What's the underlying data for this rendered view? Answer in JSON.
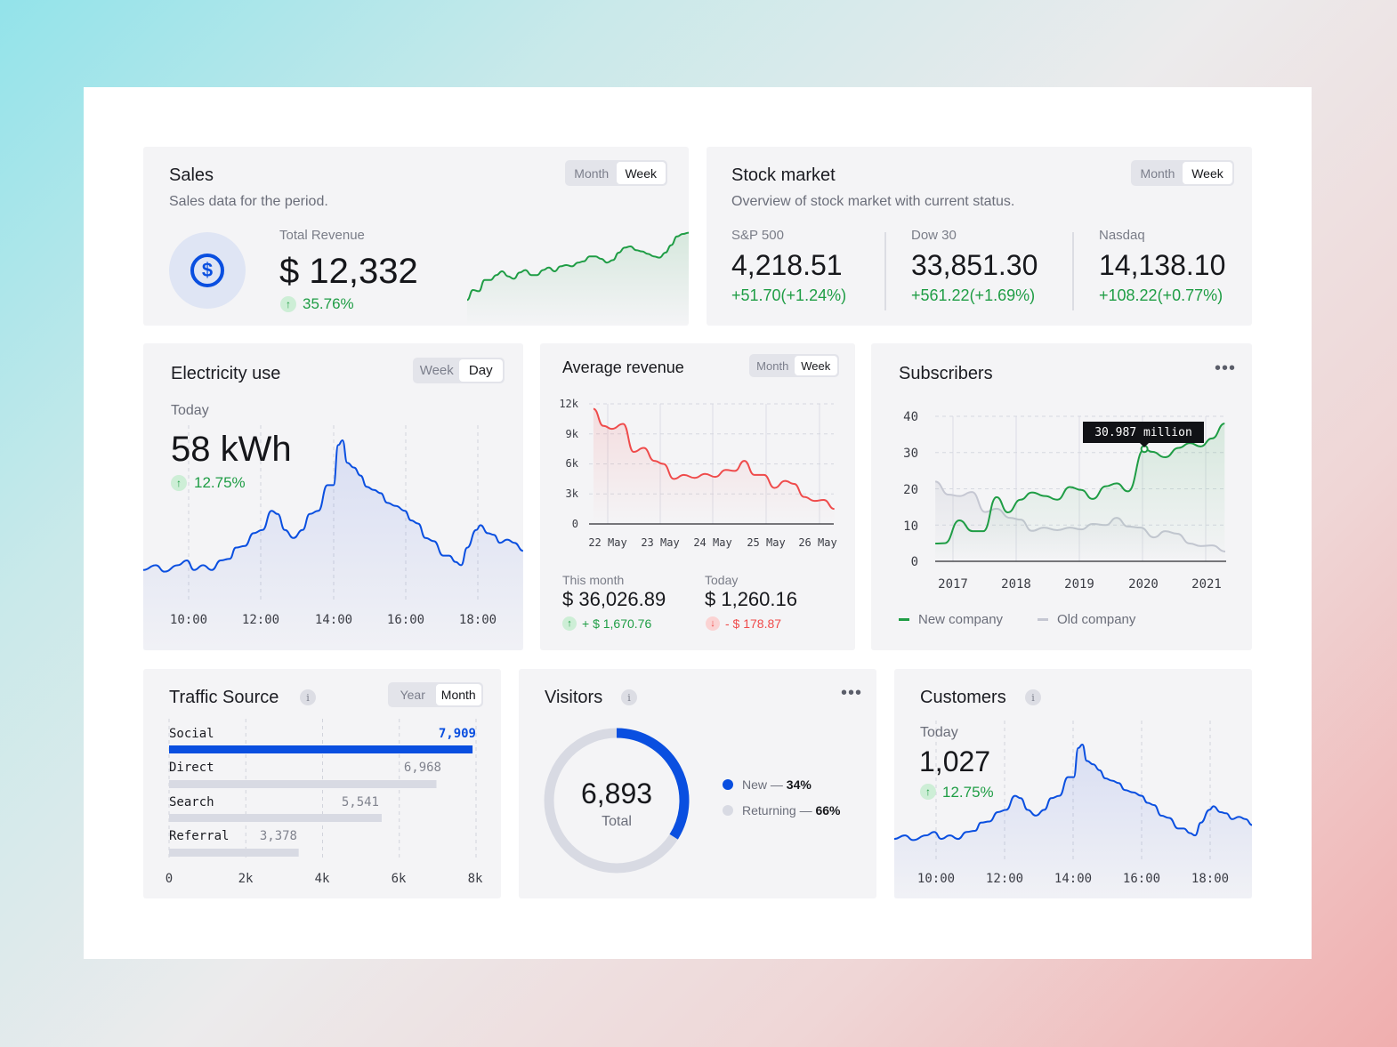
{
  "colors": {
    "green": "#1f9d45",
    "red": "#ef4b4b",
    "blue": "#0a4fe0",
    "gray": "#c5c7d2",
    "card": "#f4f4f6"
  },
  "sales": {
    "title": "Sales",
    "subtitle": "Sales data for the period.",
    "toggle": [
      "Month",
      "Week"
    ],
    "active": "Week",
    "icon": "dollar-circle-icon",
    "revenue_label": "Total Revenue",
    "revenue": "$ 12,332",
    "change": "35.76%"
  },
  "stock": {
    "title": "Stock market",
    "subtitle": "Overview of stock market with current status.",
    "toggle": [
      "Month",
      "Week"
    ],
    "active": "Week",
    "indices": [
      {
        "name": "S&P 500",
        "value": "4,218.51",
        "change": "+51.70(+1.24%)"
      },
      {
        "name": "Dow 30",
        "value": "33,851.30",
        "change": "+561.22(+1.69%)"
      },
      {
        "name": "Nasdaq",
        "value": "14,138.10",
        "change": "+108.22(+0.77%)"
      }
    ]
  },
  "electricity": {
    "title": "Electricity use",
    "toggle": [
      "Week",
      "Day"
    ],
    "active": "Day",
    "period": "Today",
    "value": "58 kWh",
    "change": "12.75%"
  },
  "avg_revenue": {
    "title": "Average revenue",
    "toggle": [
      "Month",
      "Week"
    ],
    "active": "Week",
    "this_month_label": "This month",
    "this_month": "$ 36,026.89",
    "this_month_change": "+ $ 1,670.76",
    "today_label": "Today",
    "today": "$ 1,260.16",
    "today_change": "- $ 178.87"
  },
  "subscribers": {
    "title": "Subscribers",
    "menu": "more-icon",
    "tooltip": "30.987 million",
    "legend": [
      "New company",
      "Old company"
    ]
  },
  "traffic": {
    "title": "Traffic Source",
    "toggle": [
      "Year",
      "Month"
    ],
    "active": "Month"
  },
  "visitors": {
    "title": "Visitors",
    "total": "6,893",
    "total_label": "Total",
    "legend": [
      {
        "label": "New —",
        "value": "34%"
      },
      {
        "label": "Returning —",
        "value": "66%"
      }
    ]
  },
  "customers": {
    "title": "Customers",
    "period": "Today",
    "value": "1,027",
    "change": "12.75%"
  },
  "chart_data": [
    {
      "id": "sales",
      "type": "area",
      "values": [
        2,
        10,
        9,
        18,
        18,
        22,
        25,
        21,
        19,
        24,
        26,
        22,
        22,
        26,
        28,
        25,
        29,
        30,
        29,
        32,
        33,
        37,
        37,
        35,
        32,
        34,
        40,
        44,
        45,
        42,
        41,
        39,
        37,
        36,
        40,
        46,
        53,
        55,
        56
      ],
      "color": "#1f9d45"
    },
    {
      "id": "electricity",
      "type": "area",
      "x_unit": "hour of day",
      "xticks": [
        "10:00",
        "12:00",
        "14:00",
        "16:00",
        "18:00"
      ],
      "x": [
        8.74,
        9.09,
        9.33,
        9.7,
        9.95,
        10.15,
        10.4,
        10.64,
        10.89,
        11.14,
        11.31,
        11.56,
        11.8,
        12.05,
        12.3,
        12.47,
        12.67,
        12.91,
        13.16,
        13.36,
        13.6,
        13.85,
        14.02,
        14.15,
        14.27,
        14.4,
        14.59,
        14.77,
        14.94,
        15.14,
        15.33,
        15.51,
        15.75,
        16,
        16.17,
        16.37,
        16.57,
        16.81,
        17.06,
        17.23,
        17.41,
        17.56,
        17.73,
        17.98,
        18.1,
        18.3,
        18.47,
        18.64,
        18.84,
        19.04,
        19.28
      ],
      "values": [
        19,
        22,
        18,
        22,
        25,
        19,
        22,
        19,
        25,
        26,
        33,
        34,
        42,
        44,
        56,
        54,
        44,
        39,
        44,
        54,
        56,
        72,
        72,
        97,
        100,
        86,
        83,
        78,
        71,
        69,
        67,
        61,
        59,
        56,
        50,
        48,
        39,
        37,
        28,
        28,
        24,
        22,
        33,
        44,
        47,
        42,
        41,
        36,
        38,
        36,
        31
      ],
      "color": "#0a4fe0"
    },
    {
      "id": "avg_revenue",
      "type": "area",
      "xticks": [
        "22 May",
        "23 May",
        "24 May",
        "25 May",
        "26 May"
      ],
      "yticks": [
        "12k",
        "9k",
        "6k",
        "3k",
        "0"
      ],
      "ylim": [
        0,
        12000
      ],
      "x": [
        21.73,
        21.92,
        22.08,
        22.29,
        22.49,
        22.68,
        22.88,
        23.05,
        23.25,
        23.44,
        23.64,
        23.84,
        24.03,
        24.23,
        24.4,
        24.58,
        24.77,
        24.95,
        25.15,
        25.35,
        25.52,
        25.71,
        25.91,
        26.08,
        26.28
      ],
      "values": [
        11500,
        9800,
        9500,
        10000,
        7200,
        7600,
        6300,
        6000,
        4500,
        4900,
        4600,
        5000,
        4700,
        5400,
        5300,
        6300,
        4900,
        4900,
        3600,
        4300,
        4000,
        2700,
        2300,
        2400,
        1500
      ],
      "color": "#ef4b4b"
    },
    {
      "id": "subscribers",
      "type": "line",
      "xticks": [
        "2017",
        "2018",
        "2019",
        "2020",
        "2021"
      ],
      "yticks": [
        "40",
        "30",
        "20",
        "10",
        "0"
      ],
      "ylim": [
        0,
        40
      ],
      "legend": "bottom-left",
      "series": [
        {
          "name": "New company",
          "color": "#1f9d45",
          "x": [
            2016.72,
            2016.87,
            2017.1,
            2017.31,
            2017.48,
            2017.69,
            2017.87,
            2018.07,
            2018.25,
            2018.46,
            2018.65,
            2018.85,
            2019.03,
            2019.21,
            2019.42,
            2019.59,
            2019.77,
            2020.03,
            2020.15,
            2020.36,
            2020.57,
            2020.75,
            2020.92,
            2021.1,
            2021.3
          ],
          "values": [
            4.9,
            5,
            11.3,
            8.3,
            8.3,
            17.7,
            13.5,
            17,
            19,
            18,
            17,
            20.5,
            19.7,
            17.2,
            20.7,
            21.5,
            19.3,
            30.987,
            30.2,
            28.7,
            31.3,
            32.6,
            31.7,
            33.9,
            38
          ]
        },
        {
          "name": "Old company",
          "color": "#c5c7d2",
          "x": [
            2016.72,
            2016.93,
            2017.1,
            2017.3,
            2017.51,
            2017.69,
            2017.9,
            2018.07,
            2018.25,
            2018.44,
            2018.65,
            2018.85,
            2019.03,
            2019.21,
            2019.42,
            2019.59,
            2019.77,
            2019.97,
            2020.18,
            2020.36,
            2020.55,
            2020.75,
            2020.92,
            2021.1,
            2021.31
          ],
          "values": [
            22,
            18.4,
            18,
            19.1,
            13.6,
            14.5,
            12,
            11.5,
            8.4,
            9.3,
            8.6,
            9.3,
            8.8,
            10.3,
            10,
            12,
            9.6,
            9.3,
            6.6,
            8.3,
            7.6,
            4.9,
            4.2,
            4.4,
            2.7
          ]
        }
      ]
    },
    {
      "id": "traffic",
      "type": "bar",
      "orientation": "horizontal",
      "categories": [
        "Social",
        "Direct",
        "Search",
        "Referral"
      ],
      "values": [
        7909,
        6968,
        5541,
        3378
      ],
      "labels": [
        "7,909",
        "6,968",
        "5,541",
        "3,378"
      ],
      "xticks": [
        "0",
        "2k",
        "4k",
        "6k",
        "8k"
      ],
      "xlim": [
        0,
        8000
      ]
    },
    {
      "id": "visitors",
      "type": "pie",
      "donut": true,
      "categories": [
        "New",
        "Returning"
      ],
      "values": [
        34,
        66
      ],
      "colors": [
        "#0a4fe0",
        "#d8dae3"
      ]
    },
    {
      "id": "customers",
      "type": "area",
      "xticks": [
        "10:00",
        "12:00",
        "14:00",
        "16:00",
        "18:00"
      ],
      "x": [
        8.74,
        9.09,
        9.33,
        9.7,
        9.95,
        10.15,
        10.4,
        10.64,
        10.89,
        11.14,
        11.31,
        11.56,
        11.8,
        12.05,
        12.3,
        12.47,
        12.67,
        12.91,
        13.16,
        13.36,
        13.6,
        13.85,
        14.02,
        14.15,
        14.27,
        14.4,
        14.59,
        14.77,
        14.94,
        15.14,
        15.33,
        15.51,
        15.75,
        16,
        16.17,
        16.37,
        16.57,
        16.81,
        17.06,
        17.23,
        17.41,
        17.56,
        17.73,
        17.98,
        18.1,
        18.3,
        18.47,
        18.64,
        18.84,
        19.04,
        19.28
      ],
      "values": [
        19,
        22,
        18,
        22,
        25,
        19,
        22,
        19,
        25,
        26,
        33,
        34,
        42,
        44,
        56,
        54,
        44,
        39,
        44,
        54,
        56,
        72,
        72,
        97,
        100,
        86,
        83,
        78,
        71,
        69,
        67,
        61,
        59,
        56,
        50,
        48,
        39,
        37,
        28,
        28,
        24,
        22,
        33,
        44,
        47,
        42,
        41,
        36,
        38,
        36,
        31
      ],
      "color": "#0a4fe0"
    }
  ]
}
